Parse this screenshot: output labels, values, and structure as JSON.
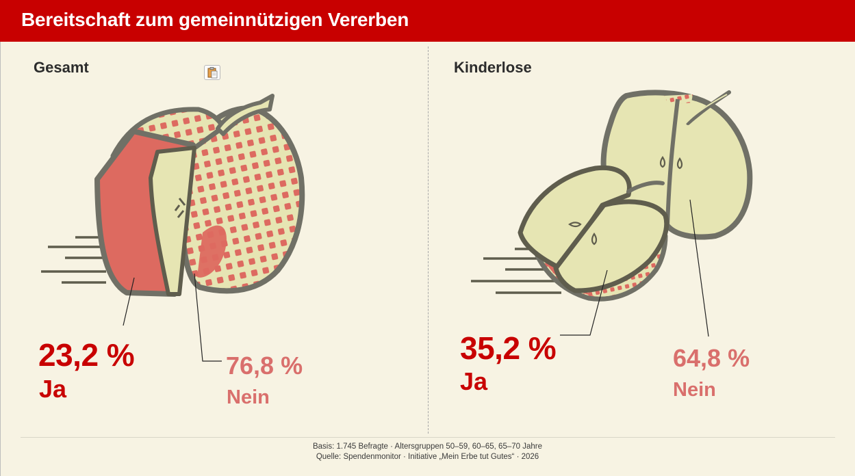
{
  "header": {
    "title": "Bereitschaft zum gemeinnützigen Vererben"
  },
  "colors": {
    "brand_red": "#c80000",
    "nein_pink": "#d96f6c",
    "apple_red": "#dd6a60",
    "apple_flesh": "#e6e5b3",
    "outline": "#707066",
    "background": "#f7f3e3"
  },
  "toolbar": {
    "clipboard_icon": "clipboard-icon"
  },
  "chart_data": [
    {
      "type": "pie",
      "title": "Gesamt",
      "categories": [
        "Ja",
        "Nein"
      ],
      "values": [
        23.2,
        76.8
      ],
      "value_labels": [
        "23,2 %",
        "76,8 %"
      ],
      "unit": "%"
    },
    {
      "type": "pie",
      "title": "Kinderlose",
      "categories": [
        "Ja",
        "Nein"
      ],
      "values": [
        35.2,
        64.8
      ],
      "value_labels": [
        "35,2 %",
        "64,8 %"
      ],
      "unit": "%"
    }
  ],
  "footer": {
    "basis": "Basis: 1.745 Befragte · Altersgruppen 50–59, 60–65, 65–70 Jahre",
    "source": "Quelle: Spendenmonitor · Initiative „Mein Erbe tut Gutes“ · 2026"
  }
}
